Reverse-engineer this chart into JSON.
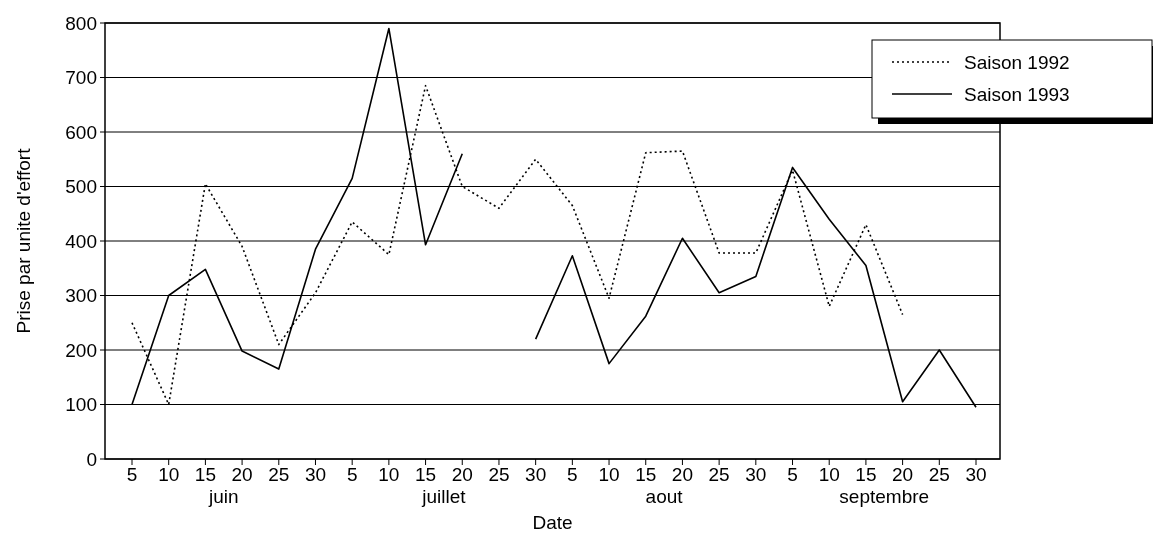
{
  "chart_data": {
    "type": "line",
    "xlabel": "Date",
    "ylabel": "Prise par unite d'effort",
    "categories": [
      "5",
      "10",
      "15",
      "20",
      "25",
      "30",
      "5",
      "10",
      "15",
      "20",
      "25",
      "30",
      "5",
      "10",
      "15",
      "20",
      "25",
      "30",
      "5",
      "10",
      "15",
      "20",
      "25",
      "30"
    ],
    "annotations": [
      "juin",
      "juillet",
      "aout",
      "septembre"
    ],
    "series": [
      {
        "name": "Saison 1992",
        "color": "#000000",
        "line_style": "dotted",
        "values": [
          250,
          100,
          505,
          390,
          210,
          305,
          435,
          375,
          685,
          500,
          460,
          550,
          465,
          295,
          562,
          565,
          378,
          378,
          530,
          280,
          430,
          265,
          null,
          null
        ]
      },
      {
        "name": "Saison 1993",
        "color": "#000000",
        "line_style": "solid",
        "values": [
          100,
          300,
          348,
          198,
          165,
          385,
          515,
          790,
          393,
          560,
          null,
          220,
          373,
          175,
          262,
          405,
          305,
          335,
          535,
          440,
          355,
          105,
          200,
          95
        ]
      }
    ],
    "ylim": [
      0,
      800
    ],
    "yticks": [
      0,
      100,
      200,
      300,
      400,
      500,
      600,
      700,
      800
    ],
    "grid": "y",
    "legend": "top right"
  }
}
